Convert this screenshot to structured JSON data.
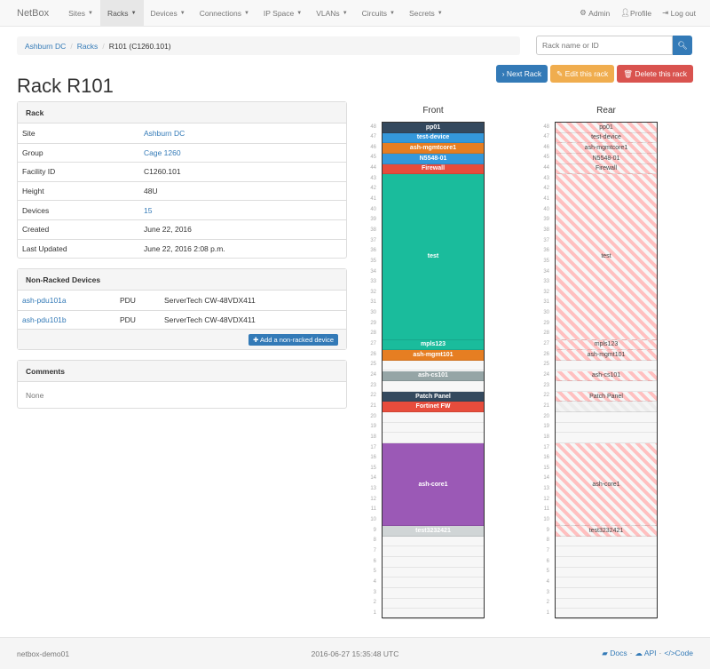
{
  "nav": {
    "brand": "NetBox",
    "items": [
      {
        "label": "Sites",
        "active": false
      },
      {
        "label": "Racks",
        "active": true
      },
      {
        "label": "Devices",
        "active": false
      },
      {
        "label": "Connections",
        "active": false
      },
      {
        "label": "IP Space",
        "active": false
      },
      {
        "label": "VLANs",
        "active": false
      },
      {
        "label": "Circuits",
        "active": false
      },
      {
        "label": "Secrets",
        "active": false
      }
    ],
    "admin": "Admin",
    "profile": "Profile",
    "logout": "Log out"
  },
  "breadcrumb": [
    "Ashburn DC",
    "Racks",
    "R101 (C1260.101)"
  ],
  "search": {
    "placeholder": "Rack name or ID"
  },
  "actions": {
    "next": "Next Rack",
    "edit": "Edit this rack",
    "delete": "Delete this rack"
  },
  "title": "Rack R101",
  "rack_panel": {
    "heading": "Rack",
    "rows": [
      {
        "k": "Site",
        "v": "Ashburn DC",
        "link": true
      },
      {
        "k": "Group",
        "v": "Cage 1260",
        "link": true
      },
      {
        "k": "Facility ID",
        "v": "C1260.101",
        "link": false
      },
      {
        "k": "Height",
        "v": "48U",
        "link": false
      },
      {
        "k": "Devices",
        "v": "15",
        "link": true
      },
      {
        "k": "Created",
        "v": "June 22, 2016",
        "link": false
      },
      {
        "k": "Last Updated",
        "v": "June 22, 2016 2:08 p.m.",
        "link": false
      }
    ]
  },
  "nonracked": {
    "heading": "Non-Racked Devices",
    "rows": [
      {
        "name": "ash-pdu101a",
        "role": "PDU",
        "type": "ServerTech CW-48VDX411"
      },
      {
        "name": "ash-pdu101b",
        "role": "PDU",
        "type": "ServerTech CW-48VDX411"
      }
    ],
    "add_button": "Add a non-racked device"
  },
  "comments": {
    "heading": "Comments",
    "body": "None"
  },
  "elevation": {
    "height_u": 48,
    "front_label": "Front",
    "rear_label": "Rear",
    "front": [
      {
        "name": "pp01",
        "top": 48,
        "units": 1,
        "color": "#34495e"
      },
      {
        "name": "test-device",
        "top": 47,
        "units": 1,
        "color": "#3498db"
      },
      {
        "name": "ash-mgmtcore1",
        "top": 46,
        "units": 1,
        "color": "#e67e22"
      },
      {
        "name": "N5548-01",
        "top": 45,
        "units": 1,
        "color": "#3498db"
      },
      {
        "name": "Firewall",
        "top": 44,
        "units": 1,
        "color": "#e74c3c"
      },
      {
        "name": "test",
        "top": 43,
        "units": 16,
        "color": "#1abc9c"
      },
      {
        "name": "mpls123",
        "top": 27,
        "units": 1,
        "color": "#1abc9c"
      },
      {
        "name": "ash-mgmt101",
        "top": 26,
        "units": 1,
        "color": "#e67e22"
      },
      {
        "name": "ash-cs101",
        "top": 24,
        "units": 1,
        "color": "#95a5a6"
      },
      {
        "name": "Patch Panel",
        "top": 22,
        "units": 1,
        "color": "#34495e"
      },
      {
        "name": "Fortinet FW",
        "top": 21,
        "units": 1,
        "color": "#e74c3c"
      },
      {
        "name": "ash-core1",
        "top": 17,
        "units": 8,
        "color": "#9b59b6"
      },
      {
        "name": "test3232421",
        "top": 9,
        "units": 1,
        "color": "#d0d5d6"
      }
    ],
    "rear": [
      {
        "name": "pp01",
        "top": 48,
        "units": 1
      },
      {
        "name": "test-device",
        "top": 47,
        "units": 1
      },
      {
        "name": "ash-mgmtcore1",
        "top": 46,
        "units": 1
      },
      {
        "name": "N5548-01",
        "top": 45,
        "units": 1
      },
      {
        "name": "Firewall",
        "top": 44,
        "units": 1
      },
      {
        "name": "test",
        "top": 43,
        "units": 16
      },
      {
        "name": "mpls123",
        "top": 27,
        "units": 1
      },
      {
        "name": "ash-mgmt101",
        "top": 26,
        "units": 1
      },
      {
        "name": "ash-cs101",
        "top": 24,
        "units": 1
      },
      {
        "name": "Patch Panel",
        "top": 22,
        "units": 1
      },
      {
        "name": "",
        "top": 21,
        "units": 1,
        "faint": true
      },
      {
        "name": "ash-core1",
        "top": 17,
        "units": 8
      },
      {
        "name": "test3232421",
        "top": 9,
        "units": 1
      }
    ]
  },
  "footer": {
    "host": "netbox-demo01",
    "time": "2016-06-27 15:35:48 UTC",
    "docs": "Docs",
    "api": "API",
    "code": "Code"
  }
}
